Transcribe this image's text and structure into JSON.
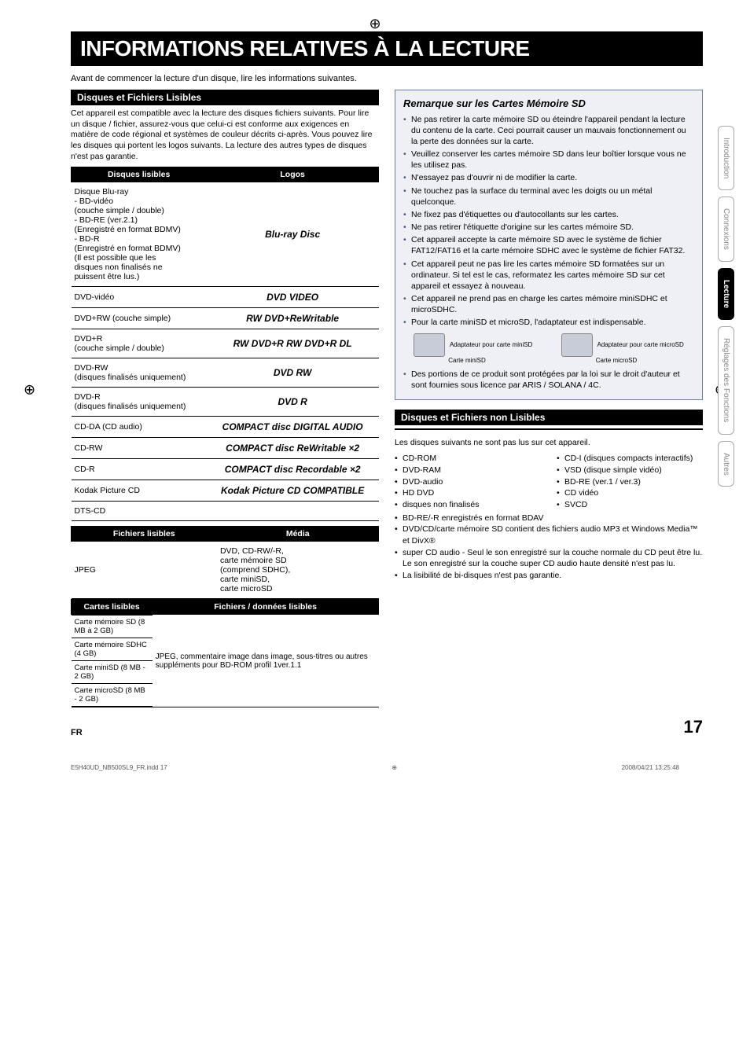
{
  "crop_glyph": "⊕",
  "heading": "INFORMATIONS RELATIVES À LA LECTURE",
  "intro": "Avant de commencer la lecture d'un disque, lire les informations suivantes.",
  "left": {
    "section1_title": "Disques et Fichiers Lisibles",
    "section1_body": "Cet appareil est compatible avec la lecture des disques fichiers suivants. Pour lire un disque / fichier, assurez-vous que celui-ci est conforme aux exigences en matière de code régional et systèmes de couleur décrits ci-après. Vous pouvez lire les disques qui portent les logos suivants. La lecture des autres types de disques n'est pas garantie.",
    "discs_header": [
      "Disques lisibles",
      "Logos"
    ],
    "discs": [
      {
        "name": "Disque Blu-ray\n- BD-vidéo\n  (couche simple / double)\n- BD-RE (ver.2.1)\n  (Enregistré en format BDMV)\n- BD-R\n  (Enregistré en format BDMV)\n  (Il est possible que les\n  disques non finalisés ne\n  puissent être lus.)",
        "logo": "Blu-ray Disc"
      },
      {
        "name": "DVD-vidéo",
        "logo": "DVD VIDEO"
      },
      {
        "name": "DVD+RW (couche simple)",
        "logo": "RW DVD+ReWritable"
      },
      {
        "name": "DVD+R\n(couche simple / double)",
        "logo": "RW DVD+R  RW DVD+R DL"
      },
      {
        "name": "DVD-RW\n(disques finalisés uniquement)",
        "logo": "DVD RW"
      },
      {
        "name": "DVD-R\n(disques finalisés uniquement)",
        "logo": "DVD R"
      },
      {
        "name": "CD-DA (CD audio)",
        "logo": "COMPACT disc DIGITAL AUDIO"
      },
      {
        "name": "CD-RW",
        "logo": "COMPACT disc ReWritable ×2"
      },
      {
        "name": "CD-R",
        "logo": "COMPACT disc Recordable ×2"
      },
      {
        "name": "Kodak Picture CD",
        "logo": "Kodak Picture CD COMPATIBLE"
      },
      {
        "name": "DTS-CD",
        "logo": ""
      }
    ],
    "files_header": [
      "Fichiers lisibles",
      "Média"
    ],
    "files": [
      {
        "name": "JPEG",
        "media": "DVD, CD-RW/-R,\ncarte mémoire SD\n(comprend SDHC),\ncarte miniSD,\ncarte microSD"
      }
    ],
    "cards_header": [
      "Cartes lisibles",
      "Fichiers / données lisibles"
    ],
    "cards_left": [
      "Carte mémoire SD (8 MB à 2 GB)",
      "Carte mémoire SDHC (4 GB)",
      "Carte miniSD (8 MB - 2 GB)",
      "Carte microSD (8 MB - 2 GB)"
    ],
    "cards_right": "JPEG, commentaire image dans image, sous-titres ou autres suppléments pour BD-ROM profil 1ver.1.1"
  },
  "right": {
    "note_title": "Remarque sur les Cartes Mémoire SD",
    "note_items": [
      "Ne pas retirer la carte mémoire SD ou éteindre l'appareil pendant la lecture du contenu de la carte. Ceci pourrait causer un mauvais fonctionnement ou la perte des données sur la carte.",
      "Veuillez conserver les cartes mémoire SD dans leur boîtier lorsque vous ne les utilisez pas.",
      "N'essayez pas d'ouvrir ni de modifier la carte.",
      "Ne touchez pas la surface du terminal avec les doigts ou un métal quelconque.",
      "Ne fixez pas d'étiquettes ou d'autocollants sur les cartes.",
      "Ne pas retirer l'étiquette d'origine sur les cartes mémoire SD.",
      "Cet appareil accepte la carte mémoire SD avec le système de fichier FAT12/FAT16 et la carte mémoire SDHC avec le système de fichier FAT32.",
      "Cet appareil peut ne pas lire les cartes mémoire SD formatées sur un ordinateur. Si tel est le cas, reformatez les cartes mémoire SD sur cet appareil et essayez à nouveau.",
      "Cet appareil ne prend pas en charge les cartes mémoire miniSDHC et microSDHC.",
      "Pour la carte miniSD et microSD, l'adaptateur est indispensable."
    ],
    "adapter_labels": {
      "mini_adapter": "Adaptateur pour carte miniSD",
      "mini_card": "Carte miniSD",
      "micro_adapter": "Adaptateur pour carte microSD",
      "micro_card": "Carte microSD"
    },
    "note_footer": "Des portions de ce produit sont protégées par la loi sur le droit d'auteur et sont fournies sous licence par ARIS / SOLANA / 4C.",
    "section2_title": "Disques et Fichiers non Lisibles",
    "section2_intro": "Les disques suivants ne sont pas lus sur cet appareil.",
    "unreadable_col1": [
      "CD-ROM",
      "DVD-RAM",
      "DVD-audio",
      "HD DVD",
      "disques non finalisés"
    ],
    "unreadable_col2": [
      "CD-I (disques compacts interactifs)",
      "VSD (disque simple vidéo)",
      "BD-RE (ver.1 / ver.3)",
      "CD vidéo",
      "SVCD"
    ],
    "unreadable_full": [
      "BD-RE/-R enregistrés en format BDAV",
      "DVD/CD/carte mémoire SD contient des fichiers audio MP3 et Windows Media™ et DivX®",
      "super CD audio - Seul le son enregistré sur la couche normale du CD peut être lu. Le son enregistré sur la couche super CD audio haute densité n'est pas lu.",
      "La lisibilité de bi-disques n'est pas garantie."
    ]
  },
  "tabs": [
    "Introduction",
    "Connexions",
    "Lecture",
    "Réglages des Fonctions",
    "Autres"
  ],
  "tabs_active_index": 2,
  "footer": {
    "lang": "FR",
    "page": "17"
  },
  "print_footer": {
    "file": "E5H40UD_NB500SL9_FR.indd   17",
    "date": "2008/04/21   13:25:48"
  }
}
